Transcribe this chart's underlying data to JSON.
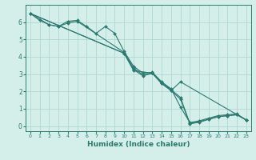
{
  "xlabel": "Humidex (Indice chaleur)",
  "bg_color": "#d4eeea",
  "grid_color": "#aed8d2",
  "line_color": "#2a7a70",
  "xlim": [
    -0.5,
    23.5
  ],
  "ylim": [
    -0.3,
    7.0
  ],
  "xticks": [
    0,
    1,
    2,
    3,
    4,
    5,
    6,
    7,
    8,
    9,
    10,
    11,
    12,
    13,
    14,
    15,
    16,
    17,
    18,
    19,
    20,
    21,
    22,
    23
  ],
  "yticks": [
    0,
    1,
    2,
    3,
    4,
    5,
    6
  ],
  "lines": [
    {
      "x": [
        0,
        1,
        2,
        3,
        4,
        5,
        6,
        7,
        8,
        9,
        10,
        11,
        12,
        13,
        14,
        15,
        16,
        17,
        18,
        19,
        20,
        21,
        22,
        23
      ],
      "y": [
        6.5,
        6.1,
        5.85,
        5.75,
        6.05,
        6.1,
        5.75,
        5.35,
        5.75,
        5.35,
        4.3,
        3.45,
        3.05,
        3.1,
        2.55,
        2.15,
        1.1,
        0.2,
        0.3,
        0.45,
        0.6,
        0.65,
        0.7,
        0.35
      ]
    },
    {
      "x": [
        0,
        2,
        3,
        4,
        5,
        10,
        11,
        12,
        13,
        14,
        15,
        16,
        17,
        18,
        19,
        20,
        21,
        22,
        23
      ],
      "y": [
        6.5,
        5.85,
        5.75,
        5.95,
        6.05,
        4.25,
        3.35,
        2.95,
        3.05,
        2.5,
        2.1,
        1.65,
        0.15,
        0.25,
        0.4,
        0.55,
        0.6,
        0.65,
        0.35
      ]
    },
    {
      "x": [
        0,
        10,
        11,
        12,
        13,
        14,
        15,
        16,
        17,
        18,
        19,
        20,
        21,
        22,
        23
      ],
      "y": [
        6.5,
        4.2,
        3.25,
        2.9,
        3.05,
        2.45,
        2.05,
        1.55,
        0.12,
        0.22,
        0.38,
        0.53,
        0.6,
        0.65,
        0.35
      ]
    },
    {
      "x": [
        0,
        10,
        11,
        13,
        14,
        15,
        16,
        23
      ],
      "y": [
        6.5,
        4.2,
        3.2,
        3.05,
        2.45,
        2.05,
        2.55,
        0.35
      ]
    }
  ]
}
